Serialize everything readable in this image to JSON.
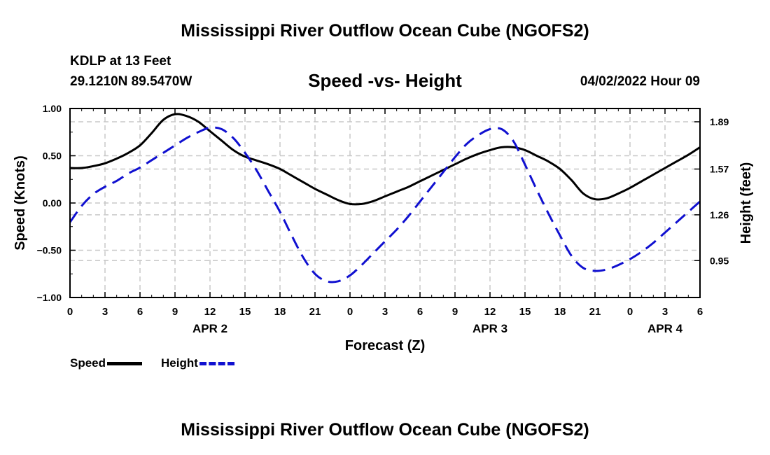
{
  "header": {
    "title": "Mississippi River Outflow Ocean Cube (NGOFS2)",
    "station": "KDLP at 13 Feet",
    "coords": "29.1210N  89.5470W",
    "subtitle": "Speed -vs- Height",
    "datetime": "04/02/2022 Hour 09"
  },
  "footer": {
    "title": "Mississippi River Outflow Ocean Cube (NGOFS2)"
  },
  "legend": {
    "speed_label": "Speed",
    "height_label": "Height"
  },
  "chart_data": {
    "type": "line",
    "xlabel": "Forecast (Z)",
    "ylabel_left": "Speed (Knots)",
    "ylabel_right": "Height (feet)",
    "x_range_hours": [
      0,
      54
    ],
    "x_ticks": [
      {
        "h": 0,
        "label": "0"
      },
      {
        "h": 3,
        "label": "3"
      },
      {
        "h": 6,
        "label": "6"
      },
      {
        "h": 9,
        "label": "9"
      },
      {
        "h": 12,
        "label": "12"
      },
      {
        "h": 15,
        "label": "15"
      },
      {
        "h": 18,
        "label": "18"
      },
      {
        "h": 21,
        "label": "21"
      },
      {
        "h": 24,
        "label": "0"
      },
      {
        "h": 27,
        "label": "3"
      },
      {
        "h": 30,
        "label": "6"
      },
      {
        "h": 33,
        "label": "9"
      },
      {
        "h": 36,
        "label": "12"
      },
      {
        "h": 39,
        "label": "15"
      },
      {
        "h": 42,
        "label": "18"
      },
      {
        "h": 45,
        "label": "21"
      },
      {
        "h": 48,
        "label": "0"
      },
      {
        "h": 51,
        "label": "3"
      },
      {
        "h": 54,
        "label": "6"
      }
    ],
    "day_labels": [
      {
        "h": 12,
        "label": "APR 2"
      },
      {
        "h": 36,
        "label": "APR 3"
      },
      {
        "h": 51,
        "label": "APR 4"
      }
    ],
    "ylim_left": [
      -1.0,
      1.0
    ],
    "yticks_left": [
      {
        "v": 1.0,
        "label": "1.00"
      },
      {
        "v": 0.5,
        "label": "0.50"
      },
      {
        "v": 0.0,
        "label": "0.00"
      },
      {
        "v": -0.5,
        "label": "−0.50"
      },
      {
        "v": -1.0,
        "label": "−1.00"
      }
    ],
    "ylim_right": [
      0.7,
      1.98
    ],
    "yticks_right": [
      {
        "v": 1.89,
        "label": "1.89"
      },
      {
        "v": 1.57,
        "label": "1.57"
      },
      {
        "v": 1.26,
        "label": "1.26"
      },
      {
        "v": 0.95,
        "label": "0.95"
      }
    ],
    "series": [
      {
        "name": "Speed",
        "axis": "left",
        "color": "#000000",
        "dash": "solid",
        "points": [
          [
            0,
            0.37
          ],
          [
            1,
            0.37
          ],
          [
            2,
            0.39
          ],
          [
            3,
            0.42
          ],
          [
            4,
            0.47
          ],
          [
            5,
            0.53
          ],
          [
            6,
            0.61
          ],
          [
            7,
            0.74
          ],
          [
            8,
            0.88
          ],
          [
            9,
            0.94
          ],
          [
            10,
            0.92
          ],
          [
            11,
            0.86
          ],
          [
            12,
            0.76
          ],
          [
            13,
            0.66
          ],
          [
            14,
            0.56
          ],
          [
            15,
            0.49
          ],
          [
            16,
            0.45
          ],
          [
            17,
            0.41
          ],
          [
            18,
            0.36
          ],
          [
            19,
            0.29
          ],
          [
            20,
            0.22
          ],
          [
            21,
            0.15
          ],
          [
            22,
            0.09
          ],
          [
            23,
            0.03
          ],
          [
            24,
            -0.01
          ],
          [
            25,
            -0.01
          ],
          [
            26,
            0.02
          ],
          [
            27,
            0.07
          ],
          [
            28,
            0.12
          ],
          [
            29,
            0.17
          ],
          [
            30,
            0.23
          ],
          [
            31,
            0.29
          ],
          [
            32,
            0.35
          ],
          [
            33,
            0.41
          ],
          [
            34,
            0.47
          ],
          [
            35,
            0.52
          ],
          [
            36,
            0.56
          ],
          [
            37,
            0.59
          ],
          [
            38,
            0.59
          ],
          [
            39,
            0.56
          ],
          [
            40,
            0.5
          ],
          [
            41,
            0.44
          ],
          [
            42,
            0.36
          ],
          [
            43,
            0.24
          ],
          [
            44,
            0.1
          ],
          [
            45,
            0.04
          ],
          [
            46,
            0.05
          ],
          [
            47,
            0.1
          ],
          [
            48,
            0.16
          ],
          [
            49,
            0.23
          ],
          [
            50,
            0.3
          ],
          [
            51,
            0.37
          ],
          [
            52,
            0.44
          ],
          [
            53,
            0.51
          ],
          [
            54,
            0.59
          ]
        ]
      },
      {
        "name": "Height",
        "axis": "right",
        "color": "#1010d0",
        "dash": "dashed",
        "points": [
          [
            0,
            1.21
          ],
          [
            1,
            1.32
          ],
          [
            2,
            1.4
          ],
          [
            3,
            1.45
          ],
          [
            4,
            1.49
          ],
          [
            5,
            1.54
          ],
          [
            6,
            1.58
          ],
          [
            7,
            1.63
          ],
          [
            8,
            1.68
          ],
          [
            9,
            1.73
          ],
          [
            10,
            1.78
          ],
          [
            11,
            1.82
          ],
          [
            12,
            1.85
          ],
          [
            13,
            1.84
          ],
          [
            14,
            1.78
          ],
          [
            15,
            1.68
          ],
          [
            16,
            1.56
          ],
          [
            17,
            1.42
          ],
          [
            18,
            1.28
          ],
          [
            19,
            1.12
          ],
          [
            20,
            0.97
          ],
          [
            21,
            0.86
          ],
          [
            22,
            0.81
          ],
          [
            23,
            0.81
          ],
          [
            24,
            0.85
          ],
          [
            25,
            0.92
          ],
          [
            26,
            1.0
          ],
          [
            27,
            1.08
          ],
          [
            28,
            1.16
          ],
          [
            29,
            1.25
          ],
          [
            30,
            1.35
          ],
          [
            31,
            1.45
          ],
          [
            32,
            1.55
          ],
          [
            33,
            1.65
          ],
          [
            34,
            1.74
          ],
          [
            35,
            1.8
          ],
          [
            36,
            1.84
          ],
          [
            37,
            1.84
          ],
          [
            38,
            1.76
          ],
          [
            39,
            1.6
          ],
          [
            40,
            1.43
          ],
          [
            41,
            1.27
          ],
          [
            42,
            1.12
          ],
          [
            43,
            0.98
          ],
          [
            44,
            0.9
          ],
          [
            45,
            0.88
          ],
          [
            46,
            0.89
          ],
          [
            47,
            0.92
          ],
          [
            48,
            0.96
          ],
          [
            49,
            1.01
          ],
          [
            50,
            1.07
          ],
          [
            51,
            1.14
          ],
          [
            52,
            1.21
          ],
          [
            53,
            1.28
          ],
          [
            54,
            1.35
          ]
        ]
      }
    ]
  }
}
